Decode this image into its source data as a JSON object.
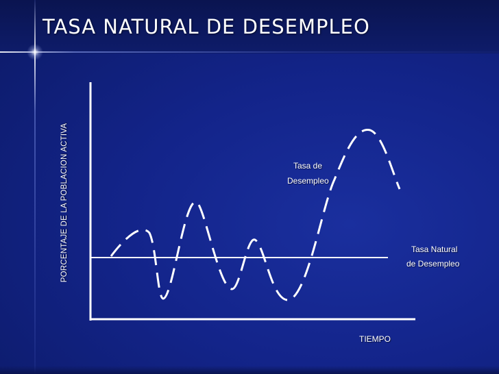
{
  "slide": {
    "title": "TASA NATURAL DE DESEMPLEO"
  },
  "diagram": {
    "y_axis_label": "PORCENTAJE DE LA POBLACION ACTIVA",
    "x_axis_label": "TIEMPO",
    "actual_rate_label": [
      "Tasa de",
      "Desempleo"
    ],
    "natural_rate_label": [
      "Tasa Natural",
      "de Desempleo"
    ],
    "actual_rate_line_style": "dashed",
    "natural_rate_line_style": "solid"
  },
  "colors": {
    "background": "#13248a",
    "text": "#ffffff",
    "lines": "#ffffff"
  }
}
